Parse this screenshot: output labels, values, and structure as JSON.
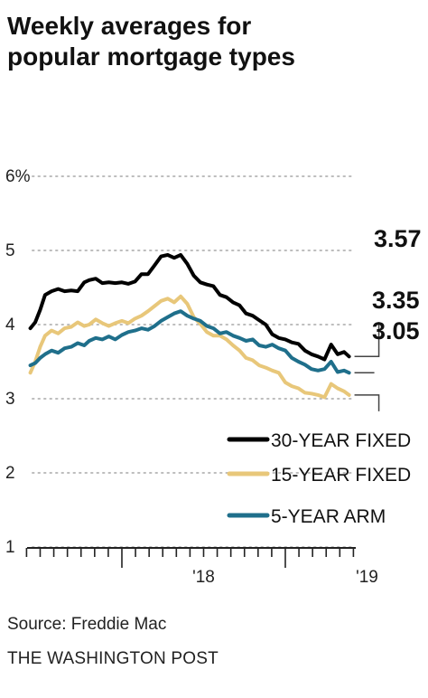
{
  "title_lines": [
    "Weekly averages for",
    "popular mortgage types"
  ],
  "source": "Source: Freddie Mac",
  "credit": "THE WASHINGTON POST",
  "colors": {
    "thirty": "#000000",
    "fifteen": "#e8c77a",
    "arm": "#1f6f8b",
    "grid": "#bdbdbd",
    "axis": "#222222"
  },
  "chart_data": {
    "type": "line",
    "title": "Weekly averages for popular mortgage types",
    "xlabel": "",
    "ylabel": "",
    "ylim": [
      0,
      6
    ],
    "y_ticks": [
      1,
      2,
      3,
      4,
      5,
      6
    ],
    "y_tick_labels": [
      "1",
      "2",
      "3",
      "4",
      "5",
      "6%"
    ],
    "x_ticks": [
      2018,
      2019
    ],
    "x_tick_labels": [
      "'18",
      "'19"
    ],
    "xlim": [
      2017.42,
      2019.42
    ],
    "grid": true,
    "legend_position": "bottom-right",
    "end_labels": [
      "3.57",
      "3.35",
      "3.05"
    ],
    "series": [
      {
        "name": "30-YEAR FIXED",
        "color": "#000000",
        "x": [
          2017.44,
          2017.47,
          2017.5,
          2017.53,
          2017.57,
          2017.61,
          2017.65,
          2017.69,
          2017.73,
          2017.77,
          2017.8,
          2017.84,
          2017.88,
          2017.92,
          2017.96,
          2018.0,
          2018.04,
          2018.08,
          2018.12,
          2018.16,
          2018.2,
          2018.24,
          2018.28,
          2018.32,
          2018.36,
          2018.4,
          2018.44,
          2018.48,
          2018.52,
          2018.56,
          2018.6,
          2018.64,
          2018.68,
          2018.72,
          2018.76,
          2018.8,
          2018.84,
          2018.88,
          2018.92,
          2018.96,
          2019.0,
          2019.04,
          2019.08,
          2019.12,
          2019.16,
          2019.2,
          2019.24,
          2019.28,
          2019.32,
          2019.36,
          2019.39
        ],
        "values": [
          3.95,
          4.03,
          4.2,
          4.4,
          4.45,
          4.48,
          4.45,
          4.46,
          4.45,
          4.57,
          4.6,
          4.62,
          4.56,
          4.57,
          4.56,
          4.57,
          4.55,
          4.58,
          4.68,
          4.68,
          4.8,
          4.92,
          4.94,
          4.9,
          4.94,
          4.82,
          4.66,
          4.57,
          4.54,
          4.52,
          4.4,
          4.37,
          4.3,
          4.26,
          4.15,
          4.12,
          4.06,
          4.0,
          3.87,
          3.82,
          3.8,
          3.76,
          3.74,
          3.65,
          3.6,
          3.57,
          3.53,
          3.73,
          3.6,
          3.63,
          3.57
        ]
      },
      {
        "name": "15-YEAR FIXED",
        "color": "#e8c77a",
        "x": [
          2017.44,
          2017.47,
          2017.5,
          2017.53,
          2017.57,
          2017.61,
          2017.65,
          2017.69,
          2017.73,
          2017.77,
          2017.8,
          2017.84,
          2017.88,
          2017.92,
          2017.96,
          2018.0,
          2018.04,
          2018.08,
          2018.12,
          2018.16,
          2018.2,
          2018.24,
          2018.28,
          2018.32,
          2018.36,
          2018.4,
          2018.44,
          2018.48,
          2018.52,
          2018.56,
          2018.6,
          2018.64,
          2018.68,
          2018.72,
          2018.76,
          2018.8,
          2018.84,
          2018.88,
          2018.92,
          2018.96,
          2019.0,
          2019.04,
          2019.08,
          2019.12,
          2019.16,
          2019.2,
          2019.24,
          2019.28,
          2019.32,
          2019.36,
          2019.39
        ],
        "values": [
          3.35,
          3.5,
          3.7,
          3.85,
          3.92,
          3.88,
          3.95,
          3.97,
          4.03,
          3.98,
          4.0,
          4.07,
          4.02,
          3.98,
          4.02,
          4.05,
          4.02,
          4.08,
          4.12,
          4.18,
          4.25,
          4.32,
          4.35,
          4.3,
          4.38,
          4.28,
          4.1,
          4.01,
          3.9,
          3.85,
          3.85,
          3.8,
          3.72,
          3.65,
          3.55,
          3.52,
          3.45,
          3.42,
          3.38,
          3.35,
          3.22,
          3.17,
          3.14,
          3.08,
          3.07,
          3.05,
          3.02,
          3.2,
          3.14,
          3.1,
          3.05
        ]
      },
      {
        "name": "5-YEAR ARM",
        "color": "#1f6f8b",
        "x": [
          2017.44,
          2017.47,
          2017.5,
          2017.53,
          2017.57,
          2017.61,
          2017.65,
          2017.69,
          2017.73,
          2017.77,
          2017.8,
          2017.84,
          2017.88,
          2017.92,
          2017.96,
          2018.0,
          2018.04,
          2018.08,
          2018.12,
          2018.16,
          2018.2,
          2018.24,
          2018.28,
          2018.32,
          2018.36,
          2018.4,
          2018.44,
          2018.48,
          2018.52,
          2018.56,
          2018.6,
          2018.64,
          2018.68,
          2018.72,
          2018.76,
          2018.8,
          2018.84,
          2018.88,
          2018.92,
          2018.96,
          2019.0,
          2019.04,
          2019.08,
          2019.12,
          2019.16,
          2019.2,
          2019.24,
          2019.28,
          2019.32,
          2019.36,
          2019.39
        ],
        "values": [
          3.45,
          3.48,
          3.55,
          3.6,
          3.65,
          3.62,
          3.68,
          3.7,
          3.75,
          3.72,
          3.78,
          3.82,
          3.8,
          3.84,
          3.8,
          3.86,
          3.9,
          3.92,
          3.95,
          3.93,
          3.98,
          4.05,
          4.1,
          4.15,
          4.18,
          4.12,
          4.08,
          4.05,
          3.98,
          3.95,
          3.88,
          3.9,
          3.85,
          3.82,
          3.78,
          3.8,
          3.72,
          3.7,
          3.73,
          3.68,
          3.65,
          3.55,
          3.5,
          3.46,
          3.4,
          3.38,
          3.4,
          3.5,
          3.36,
          3.38,
          3.35
        ]
      }
    ]
  }
}
